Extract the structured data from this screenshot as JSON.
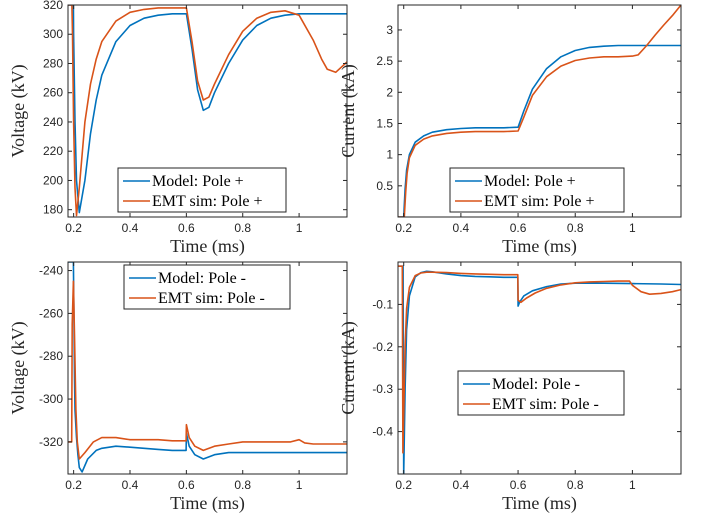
{
  "colors": {
    "model": "#0072BD",
    "emt": "#D95319",
    "axis": "#262626"
  },
  "chart_data": [
    {
      "type": "line",
      "xlabel": "Time (ms)",
      "ylabel": "Voltage (kV)",
      "xlim": [
        0.18,
        1.17
      ],
      "ylim": [
        175,
        320
      ],
      "xticks": [
        0.2,
        0.4,
        0.6,
        0.8,
        1
      ],
      "xtick_labels": [
        "0.2",
        "0.4",
        "0.6",
        "0.8",
        "1"
      ],
      "yticks": [
        180,
        200,
        220,
        240,
        260,
        280,
        300,
        320
      ],
      "ytick_labels": [
        "180",
        "200",
        "220",
        "240",
        "260",
        "280",
        "300",
        "320"
      ],
      "legend": "lower-center",
      "series": [
        {
          "name": "Model: Pole +",
          "color": "#0072BD",
          "x": [
            0.18,
            0.199,
            0.2,
            0.205,
            0.21,
            0.22,
            0.24,
            0.26,
            0.28,
            0.3,
            0.35,
            0.4,
            0.45,
            0.5,
            0.55,
            0.599,
            0.6,
            0.62,
            0.64,
            0.66,
            0.68,
            0.7,
            0.75,
            0.8,
            0.85,
            0.9,
            0.95,
            1.0,
            1.05,
            1.1,
            1.17
          ],
          "y": [
            320,
            320,
            300,
            240,
            200,
            178,
            200,
            232,
            255,
            272,
            295,
            306,
            311,
            313,
            314,
            314,
            314,
            290,
            262,
            248,
            250,
            260,
            280,
            296,
            306,
            311,
            313,
            314,
            314,
            314,
            314
          ]
        },
        {
          "name": "EMT sim: Pole +",
          "color": "#D95319",
          "x": [
            0.18,
            0.194,
            0.196,
            0.2,
            0.205,
            0.21,
            0.22,
            0.24,
            0.26,
            0.28,
            0.3,
            0.35,
            0.4,
            0.45,
            0.5,
            0.55,
            0.599,
            0.6,
            0.62,
            0.64,
            0.66,
            0.68,
            0.7,
            0.75,
            0.8,
            0.85,
            0.9,
            0.95,
            1.0,
            1.05,
            1.08,
            1.1,
            1.13,
            1.17
          ],
          "y": [
            320,
            320,
            300,
            240,
            195,
            176,
            195,
            240,
            266,
            283,
            295,
            309,
            315,
            317,
            318,
            318,
            318,
            318,
            295,
            268,
            255,
            257,
            266,
            286,
            302,
            311,
            315,
            316,
            313,
            296,
            283,
            276,
            274,
            281
          ]
        }
      ]
    },
    {
      "type": "line",
      "xlabel": "Time (ms)",
      "ylabel": "Current (kA)",
      "xlim": [
        0.18,
        1.17
      ],
      "ylim": [
        0,
        3.4
      ],
      "xticks": [
        0.2,
        0.4,
        0.6,
        0.8,
        1
      ],
      "xtick_labels": [
        "0.2",
        "0.4",
        "0.6",
        "0.8",
        "1"
      ],
      "yticks": [
        0.5,
        1,
        1.5,
        2,
        2.5,
        3
      ],
      "ytick_labels": [
        "0.5",
        "1",
        "1.5",
        "2",
        "2.5",
        "3"
      ],
      "legend": "lower-center",
      "series": [
        {
          "name": "Model: Pole +",
          "color": "#0072BD",
          "x": [
            0.18,
            0.2,
            0.205,
            0.21,
            0.22,
            0.24,
            0.27,
            0.3,
            0.35,
            0.4,
            0.45,
            0.5,
            0.55,
            0.599,
            0.6,
            0.62,
            0.65,
            0.7,
            0.75,
            0.8,
            0.85,
            0.9,
            0.95,
            1.0,
            1.05,
            1.1,
            1.17
          ],
          "y": [
            0,
            0,
            0.45,
            0.75,
            1.0,
            1.2,
            1.3,
            1.36,
            1.4,
            1.42,
            1.43,
            1.43,
            1.43,
            1.44,
            1.44,
            1.7,
            2.05,
            2.38,
            2.57,
            2.67,
            2.72,
            2.74,
            2.75,
            2.75,
            2.75,
            2.75,
            2.75
          ]
        },
        {
          "name": "EMT sim: Pole +",
          "color": "#D95319",
          "x": [
            0.18,
            0.202,
            0.207,
            0.212,
            0.22,
            0.24,
            0.27,
            0.3,
            0.35,
            0.4,
            0.45,
            0.5,
            0.55,
            0.599,
            0.6,
            0.62,
            0.65,
            0.7,
            0.75,
            0.8,
            0.85,
            0.9,
            0.95,
            1.0,
            1.02,
            1.05,
            1.08,
            1.11,
            1.14,
            1.17
          ],
          "y": [
            0,
            0,
            0.4,
            0.7,
            0.95,
            1.15,
            1.25,
            1.3,
            1.34,
            1.36,
            1.37,
            1.37,
            1.37,
            1.38,
            1.38,
            1.6,
            1.95,
            2.25,
            2.42,
            2.51,
            2.55,
            2.57,
            2.57,
            2.58,
            2.6,
            2.75,
            2.92,
            3.08,
            3.23,
            3.4
          ]
        }
      ]
    },
    {
      "type": "line",
      "xlabel": "Time (ms)",
      "ylabel": "Voltage (kV)",
      "xlim": [
        0.18,
        1.17
      ],
      "ylim": [
        -335,
        -236
      ],
      "xticks": [
        0.2,
        0.4,
        0.6,
        0.8,
        1
      ],
      "xtick_labels": [
        "0.2",
        "0.4",
        "0.6",
        "0.8",
        "1"
      ],
      "yticks": [
        -320,
        -300,
        -280,
        -260,
        -240
      ],
      "ytick_labels": [
        "-320",
        "-300",
        "-280",
        "-260",
        "-240"
      ],
      "legend": "top-center",
      "series": [
        {
          "name": "Model: Pole -",
          "color": "#0072BD",
          "x": [
            0.18,
            0.199,
            0.201,
            0.203,
            0.205,
            0.21,
            0.215,
            0.22,
            0.23,
            0.25,
            0.28,
            0.3,
            0.35,
            0.4,
            0.45,
            0.5,
            0.55,
            0.599,
            0.6,
            0.61,
            0.63,
            0.66,
            0.7,
            0.75,
            0.8,
            0.9,
            1.0,
            1.1,
            1.17
          ],
          "y": [
            -236,
            -236,
            -260,
            -290,
            -305,
            -318,
            -326,
            -332,
            -334,
            -328,
            -324,
            -323,
            -322,
            -322.5,
            -323,
            -323.5,
            -324,
            -324,
            -316,
            -322,
            -326,
            -328,
            -326,
            -325,
            -325,
            -325,
            -325,
            -325,
            -325
          ]
        },
        {
          "name": "EMT sim: Pole -",
          "color": "#D95319",
          "x": [
            0.18,
            0.193,
            0.195,
            0.199,
            0.203,
            0.208,
            0.213,
            0.22,
            0.24,
            0.27,
            0.3,
            0.35,
            0.4,
            0.45,
            0.5,
            0.55,
            0.599,
            0.6,
            0.61,
            0.63,
            0.66,
            0.7,
            0.75,
            0.8,
            0.9,
            0.97,
            1.0,
            1.02,
            1.05,
            1.1,
            1.17
          ],
          "y": [
            -320,
            -320,
            -265,
            -245,
            -270,
            -305,
            -320,
            -328,
            -325,
            -320,
            -318,
            -318,
            -319,
            -319,
            -319,
            -319.5,
            -319.5,
            -312,
            -318,
            -322,
            -324,
            -322,
            -321,
            -320,
            -320,
            -320,
            -319,
            -320.5,
            -321,
            -321,
            -321
          ]
        }
      ]
    },
    {
      "type": "line",
      "xlabel": "Time (ms)",
      "ylabel": "Current (kA)",
      "xlim": [
        0.18,
        1.17
      ],
      "ylim": [
        -0.5,
        0.0
      ],
      "xticks": [
        0.2,
        0.4,
        0.6,
        0.8,
        1
      ],
      "xtick_labels": [
        "0.2",
        "0.4",
        "0.6",
        "0.8",
        "1"
      ],
      "yticks": [
        -0.4,
        -0.3,
        -0.2,
        -0.1
      ],
      "ytick_labels": [
        "-0.4",
        "-0.3",
        "-0.2",
        "-0.1"
      ],
      "legend": "lower-center",
      "series": [
        {
          "name": "Model: Pole -",
          "color": "#0072BD",
          "x": [
            0.18,
            0.198,
            0.2,
            0.205,
            0.21,
            0.22,
            0.24,
            0.26,
            0.28,
            0.3,
            0.35,
            0.4,
            0.45,
            0.5,
            0.55,
            0.599,
            0.6,
            0.605,
            0.62,
            0.65,
            0.7,
            0.75,
            0.8,
            0.85,
            0.9,
            1.0,
            1.1,
            1.17
          ],
          "y": [
            -0.01,
            -0.01,
            -0.5,
            -0.3,
            -0.16,
            -0.08,
            -0.035,
            -0.025,
            -0.022,
            -0.023,
            -0.028,
            -0.032,
            -0.034,
            -0.035,
            -0.036,
            -0.036,
            -0.104,
            -0.095,
            -0.08,
            -0.068,
            -0.058,
            -0.052,
            -0.05,
            -0.05,
            -0.05,
            -0.051,
            -0.052,
            -0.053
          ]
        },
        {
          "name": "EMT sim: Pole -",
          "color": "#D95319",
          "x": [
            0.18,
            0.195,
            0.197,
            0.205,
            0.21,
            0.22,
            0.24,
            0.26,
            0.28,
            0.3,
            0.35,
            0.4,
            0.45,
            0.5,
            0.55,
            0.599,
            0.6,
            0.61,
            0.63,
            0.66,
            0.7,
            0.75,
            0.8,
            0.85,
            0.9,
            0.95,
            0.99,
            1.0,
            1.03,
            1.06,
            1.1,
            1.14,
            1.17
          ],
          "y": [
            -0.01,
            -0.01,
            -0.45,
            -0.2,
            -0.11,
            -0.06,
            -0.032,
            -0.026,
            -0.024,
            -0.024,
            -0.025,
            -0.027,
            -0.028,
            -0.029,
            -0.03,
            -0.03,
            -0.09,
            -0.095,
            -0.085,
            -0.073,
            -0.062,
            -0.054,
            -0.049,
            -0.047,
            -0.046,
            -0.045,
            -0.045,
            -0.055,
            -0.07,
            -0.076,
            -0.074,
            -0.07,
            -0.065
          ]
        }
      ]
    }
  ]
}
